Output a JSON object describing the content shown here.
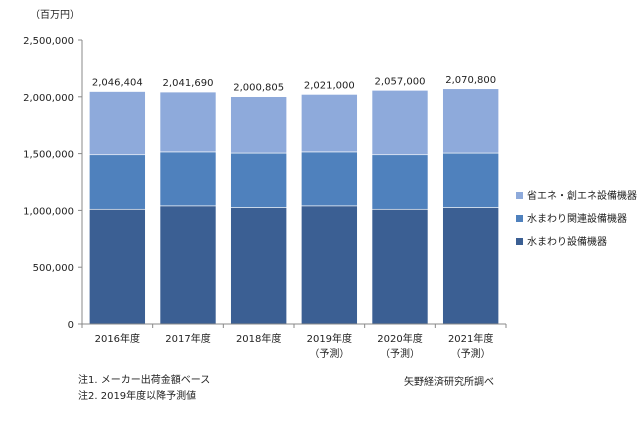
{
  "chart_data": {
    "type": "bar",
    "stacked": true,
    "unit_label": "（百万円）",
    "categories": [
      [
        "2016年度",
        ""
      ],
      [
        "2017年度",
        ""
      ],
      [
        "2018年度",
        ""
      ],
      [
        "2019年度",
        "（予測）"
      ],
      [
        "2020年度",
        "（予測）"
      ],
      [
        "2021年度",
        "（予測）"
      ]
    ],
    "totals": [
      2046404,
      2041690,
      2000805,
      2021000,
      2057000,
      2070800
    ],
    "total_labels": [
      "2,046,404",
      "2,041,690",
      "2,000,805",
      "2,021,000",
      "2,057,000",
      "2,070,800"
    ],
    "series": [
      {
        "name": "水まわり設備機器",
        "color": "#3b5f93",
        "values": [
          1010000,
          1040000,
          1025000,
          1040000,
          1010000,
          1025000
        ]
      },
      {
        "name": "水まわり関連設備機器",
        "color": "#4f81bd",
        "values": [
          480000,
          475000,
          480000,
          475000,
          480000,
          480000
        ]
      },
      {
        "name": "省エネ・創エネ設備機器",
        "color": "#8eaadb",
        "values": [
          556404,
          526690,
          495805,
          506000,
          567000,
          565800
        ]
      }
    ],
    "yticks": [
      0,
      500000,
      1000000,
      1500000,
      2000000,
      2500000
    ],
    "ytick_labels": [
      "0",
      "500,000",
      "1,000,000",
      "1,500,000",
      "2,000,000",
      "2,500,000"
    ],
    "ylim": [
      0,
      2500000
    ],
    "grid": false,
    "legend_position": "right"
  },
  "notes": [
    "注1. メーカー出荷金額ベース",
    "注2. 2019年度以降予測値"
  ],
  "source": "矢野経済研究所調べ"
}
